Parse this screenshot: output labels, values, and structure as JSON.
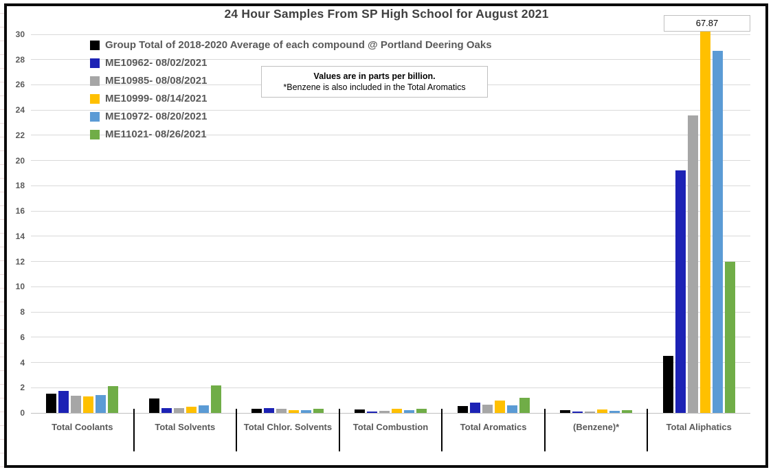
{
  "title": "24 Hour Samples From SP High School for August 2021",
  "annotation": {
    "line1": "Values are in parts per billion.",
    "line2": "*Benzene is also included in the Total Aromatics"
  },
  "data_label": "67.87",
  "colors": {
    "black": "#000000",
    "dark_blue": "#1c22b5",
    "gray": "#a6a6a6",
    "gold": "#ffc000",
    "light_blue": "#5b9bd5",
    "green": "#70ad47",
    "gridline": "#d9d9d9",
    "text_gray": "#595959"
  },
  "chart_data": {
    "type": "bar",
    "title": "24 Hour Samples From SP High School for August 2021",
    "categories": [
      "Total Coolants",
      "Total Solvents",
      "Total Chlor. Solvents",
      "Total Combustion",
      "Total Aromatics",
      "(Benzene)*",
      "Total Aliphatics"
    ],
    "series": [
      {
        "name": "Group Total of 2018-2020 Average of each compound @ Portland Deering Oaks",
        "color": "#000000",
        "values": [
          1.5,
          1.15,
          0.35,
          0.25,
          0.55,
          0.2,
          4.5
        ]
      },
      {
        "name": "ME10962- 08/02/2021",
        "color": "#1c22b5",
        "values": [
          1.75,
          0.4,
          0.4,
          0.1,
          0.8,
          0.1,
          19.2
        ]
      },
      {
        "name": "ME10985- 08/08/2021",
        "color": "#a6a6a6",
        "values": [
          1.35,
          0.4,
          0.3,
          0.15,
          0.65,
          0.1,
          23.6
        ]
      },
      {
        "name": "ME10999- 08/14/2021",
        "color": "#ffc000",
        "values": [
          1.3,
          0.5,
          0.2,
          0.3,
          1.0,
          0.25,
          67.87
        ]
      },
      {
        "name": "ME10972- 08/20/2021",
        "color": "#5b9bd5",
        "values": [
          1.4,
          0.6,
          0.2,
          0.2,
          0.6,
          0.15,
          28.7
        ]
      },
      {
        "name": "ME11021- 08/26/2021",
        "color": "#70ad47",
        "values": [
          2.1,
          2.2,
          0.3,
          0.35,
          1.2,
          0.2,
          12.0
        ]
      }
    ],
    "ylim": [
      0,
      30
    ],
    "ytick_step": 2,
    "grid": true,
    "xlabel": "",
    "ylabel": "",
    "legend_position": "inside-top-left",
    "units_note": "Values are in parts per billion.",
    "clipped_bar": {
      "series": "ME10999- 08/14/2021",
      "category": "Total Aliphatics",
      "value": 67.87,
      "label": "67.87"
    }
  }
}
